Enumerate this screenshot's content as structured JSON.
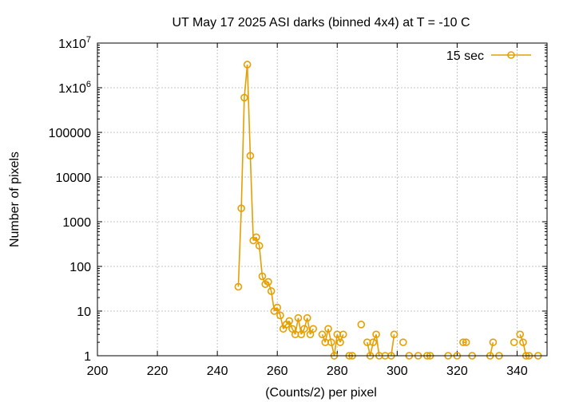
{
  "chart_data": {
    "type": "line",
    "title": "UT May 17 2025 ASI darks (binned 4x4) at T = -10 C",
    "xlabel": "(Counts/2) per pixel",
    "ylabel": "Number of pixels",
    "xlim": [
      200,
      350
    ],
    "ylim": [
      1,
      10000000
    ],
    "y_scale": "log",
    "grid": true,
    "legend_position": "top-right",
    "x_ticks": [
      "200",
      "220",
      "240",
      "260",
      "280",
      "300",
      "320",
      "340"
    ],
    "x_tick_values": [
      200,
      220,
      240,
      260,
      280,
      300,
      320,
      340
    ],
    "y_ticks": [
      "1",
      "10",
      "100",
      "1000",
      "10000",
      "100000",
      "1x10^6",
      "1x10^7"
    ],
    "y_tick_values": [
      1,
      10,
      100,
      1000,
      10000,
      100000,
      1000000,
      10000000
    ],
    "series": [
      {
        "name": "15 sec",
        "color": "#e69f00",
        "marker": "open-circle",
        "x": [
          247,
          248,
          249,
          250,
          251,
          252,
          253,
          254,
          255,
          256,
          257,
          258,
          259,
          260,
          261,
          262,
          263,
          264,
          265,
          266,
          267,
          268,
          269,
          270,
          271,
          272,
          275,
          276,
          277,
          278,
          279,
          280,
          281,
          282,
          284,
          285,
          288,
          290,
          291,
          292,
          293,
          294,
          296,
          298,
          299,
          302,
          304,
          307,
          310,
          311,
          317,
          320,
          322,
          323,
          325,
          331,
          332,
          334,
          339,
          341,
          342,
          343,
          344,
          347
        ],
        "values": [
          35,
          2000,
          600000,
          3300000,
          30000,
          380,
          450,
          290,
          60,
          40,
          45,
          28,
          10,
          12,
          8,
          4,
          5,
          6,
          4,
          3,
          7,
          3,
          4,
          7,
          3,
          4,
          3,
          2,
          4,
          2,
          1,
          3,
          2,
          3,
          1,
          1,
          5,
          2,
          1,
          2,
          3,
          1,
          1,
          1,
          3,
          2,
          1,
          1,
          1,
          1,
          1,
          1,
          2,
          2,
          1,
          1,
          2,
          1,
          2,
          3,
          2,
          1,
          1,
          1
        ]
      }
    ]
  }
}
